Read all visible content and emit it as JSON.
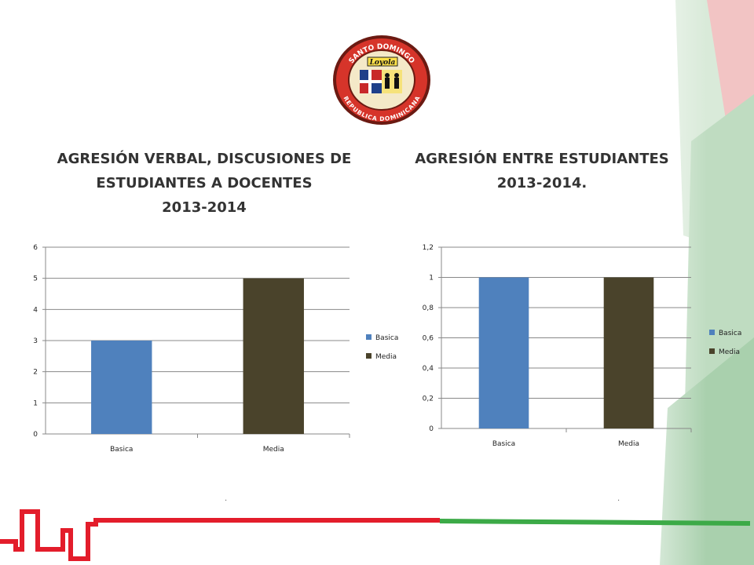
{
  "logo": {
    "top_text": "SANTO DOMINGO",
    "bottom_text": "REPUBLICA DOMINICANA",
    "badge_text": "Loyola"
  },
  "titles": {
    "left": [
      "AGRESIÓN VERBAL, DISCUSIONES DE",
      "ESTUDIANTES A DOCENTES",
      "2013-2014"
    ],
    "right": [
      "AGRESIÓN ENTRE ESTUDIANTES",
      "2013-2014."
    ]
  },
  "colors": {
    "basica": "#4f81bd",
    "media": "#4a432b",
    "accent_red": "#e31d2b",
    "accent_green": "#3caa47"
  },
  "chart_data": [
    {
      "type": "bar",
      "categories": [
        "Basica",
        "Media"
      ],
      "values": [
        3,
        5
      ],
      "ylim": [
        0,
        6
      ],
      "yticks": [
        "0",
        "1",
        "2",
        "3",
        "4",
        "5",
        "6"
      ],
      "legend": [
        "Basica",
        "Media"
      ],
      "legend_position": "right",
      "grid": true
    },
    {
      "type": "bar",
      "categories": [
        "Basica",
        "Media"
      ],
      "values": [
        1,
        1
      ],
      "ylim": [
        0,
        1.2
      ],
      "yticks": [
        "0",
        "0,2",
        "0,4",
        "0,6",
        "0,8",
        "1",
        "1,2"
      ],
      "legend": [
        "Basica",
        "Media"
      ],
      "legend_position": "right",
      "grid": true
    }
  ]
}
